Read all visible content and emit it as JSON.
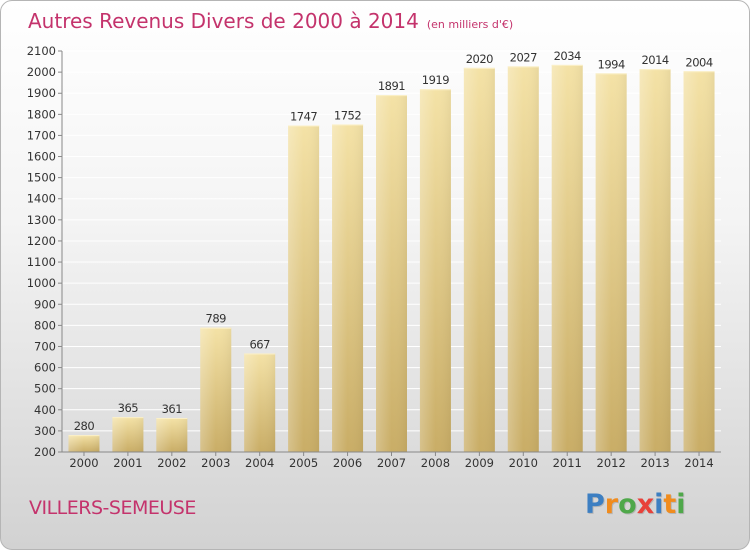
{
  "chart_data": {
    "type": "bar",
    "title": "Autres Revenus Divers de 2000 à 2014",
    "subtitle": "(en milliers d'€)",
    "categories": [
      "2000",
      "2001",
      "2002",
      "2003",
      "2004",
      "2005",
      "2006",
      "2007",
      "2008",
      "2009",
      "2010",
      "2011",
      "2012",
      "2013",
      "2014"
    ],
    "values": [
      280,
      365,
      361,
      789,
      667,
      1747,
      1752,
      1891,
      1919,
      2020,
      2027,
      2034,
      1994,
      2014,
      2004
    ],
    "ylim": [
      200,
      2100
    ],
    "yticks": [
      200,
      300,
      400,
      500,
      600,
      700,
      800,
      900,
      1000,
      1100,
      1200,
      1300,
      1400,
      1500,
      1600,
      1700,
      1800,
      1900,
      2000,
      2100
    ],
    "xlabel": "",
    "ylabel": "",
    "grid": true,
    "bar_color": "#e9d08a",
    "bar_color_dark": "#c8ac62"
  },
  "footer": {
    "commune": "VILLERS-SEMEUSE",
    "logo": {
      "letters": [
        "P",
        "r",
        "o",
        "x",
        "i",
        "t",
        "i"
      ],
      "colors": [
        "#3d7fc2",
        "#f08c1e",
        "#4fa84a",
        "#e8413a",
        "#3d7fc2",
        "#f08c1e",
        "#4fa84a"
      ]
    }
  }
}
